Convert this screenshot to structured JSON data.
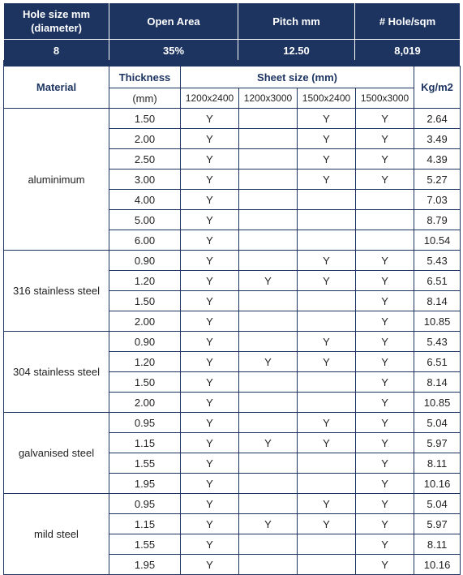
{
  "summary": {
    "headers": [
      "Hole size mm\n(diameter)",
      "Open Area",
      "Pitch mm",
      "# Hole/sqm"
    ],
    "values": [
      "8",
      "35%",
      "12.50",
      "8,019"
    ]
  },
  "table": {
    "col_material": "Material",
    "col_thickness": "Thickness",
    "col_thickness_unit": "(mm)",
    "col_sheet": "Sheet size (mm)",
    "sheet_sizes": [
      "1200x2400",
      "1200x3000",
      "1500x2400",
      "1500x3000"
    ],
    "col_weight": "Kg/m2",
    "groups": [
      {
        "material": "aluminimum",
        "rows": [
          {
            "t": "1.50",
            "s": [
              "Y",
              "",
              "Y",
              "Y"
            ],
            "kg": "2.64"
          },
          {
            "t": "2.00",
            "s": [
              "Y",
              "",
              "Y",
              "Y"
            ],
            "kg": "3.49"
          },
          {
            "t": "2.50",
            "s": [
              "Y",
              "",
              "Y",
              "Y"
            ],
            "kg": "4.39"
          },
          {
            "t": "3.00",
            "s": [
              "Y",
              "",
              "Y",
              "Y"
            ],
            "kg": "5.27"
          },
          {
            "t": "4.00",
            "s": [
              "Y",
              "",
              "",
              ""
            ],
            "kg": "7.03"
          },
          {
            "t": "5.00",
            "s": [
              "Y",
              "",
              "",
              ""
            ],
            "kg": "8.79"
          },
          {
            "t": "6.00",
            "s": [
              "Y",
              "",
              "",
              ""
            ],
            "kg": "10.54"
          }
        ]
      },
      {
        "material": "316 stainless steel",
        "rows": [
          {
            "t": "0.90",
            "s": [
              "Y",
              "",
              "Y",
              "Y"
            ],
            "kg": "5.43"
          },
          {
            "t": "1.20",
            "s": [
              "Y",
              "Y",
              "Y",
              "Y"
            ],
            "kg": "6.51"
          },
          {
            "t": "1.50",
            "s": [
              "Y",
              "",
              "",
              "Y"
            ],
            "kg": "8.14"
          },
          {
            "t": "2.00",
            "s": [
              "Y",
              "",
              "",
              "Y"
            ],
            "kg": "10.85"
          }
        ]
      },
      {
        "material": "304 stainless steel",
        "rows": [
          {
            "t": "0.90",
            "s": [
              "Y",
              "",
              "Y",
              "Y"
            ],
            "kg": "5.43"
          },
          {
            "t": "1.20",
            "s": [
              "Y",
              "Y",
              "Y",
              "Y"
            ],
            "kg": "6.51"
          },
          {
            "t": "1.50",
            "s": [
              "Y",
              "",
              "",
              "Y"
            ],
            "kg": "8.14"
          },
          {
            "t": "2.00",
            "s": [
              "Y",
              "",
              "",
              "Y"
            ],
            "kg": "10.85"
          }
        ]
      },
      {
        "material": "galvanised steel",
        "rows": [
          {
            "t": "0.95",
            "s": [
              "Y",
              "",
              "Y",
              "Y"
            ],
            "kg": "5.04"
          },
          {
            "t": "1.15",
            "s": [
              "Y",
              "Y",
              "Y",
              "Y"
            ],
            "kg": "5.97"
          },
          {
            "t": "1.55",
            "s": [
              "Y",
              "",
              "",
              "Y"
            ],
            "kg": "8.11"
          },
          {
            "t": "1.95",
            "s": [
              "Y",
              "",
              "",
              "Y"
            ],
            "kg": "10.16"
          }
        ]
      },
      {
        "material": "mild steel",
        "rows": [
          {
            "t": "0.95",
            "s": [
              "Y",
              "",
              "Y",
              "Y"
            ],
            "kg": "5.04"
          },
          {
            "t": "1.15",
            "s": [
              "Y",
              "Y",
              "Y",
              "Y"
            ],
            "kg": "5.97"
          },
          {
            "t": "1.55",
            "s": [
              "Y",
              "",
              "",
              "Y"
            ],
            "kg": "8.11"
          },
          {
            "t": "1.95",
            "s": [
              "Y",
              "",
              "",
              "Y"
            ],
            "kg": "10.16"
          }
        ]
      }
    ]
  },
  "colors": {
    "header_bg": "#1d3461",
    "border": "#1d3461",
    "header_text": "#ffffff"
  }
}
